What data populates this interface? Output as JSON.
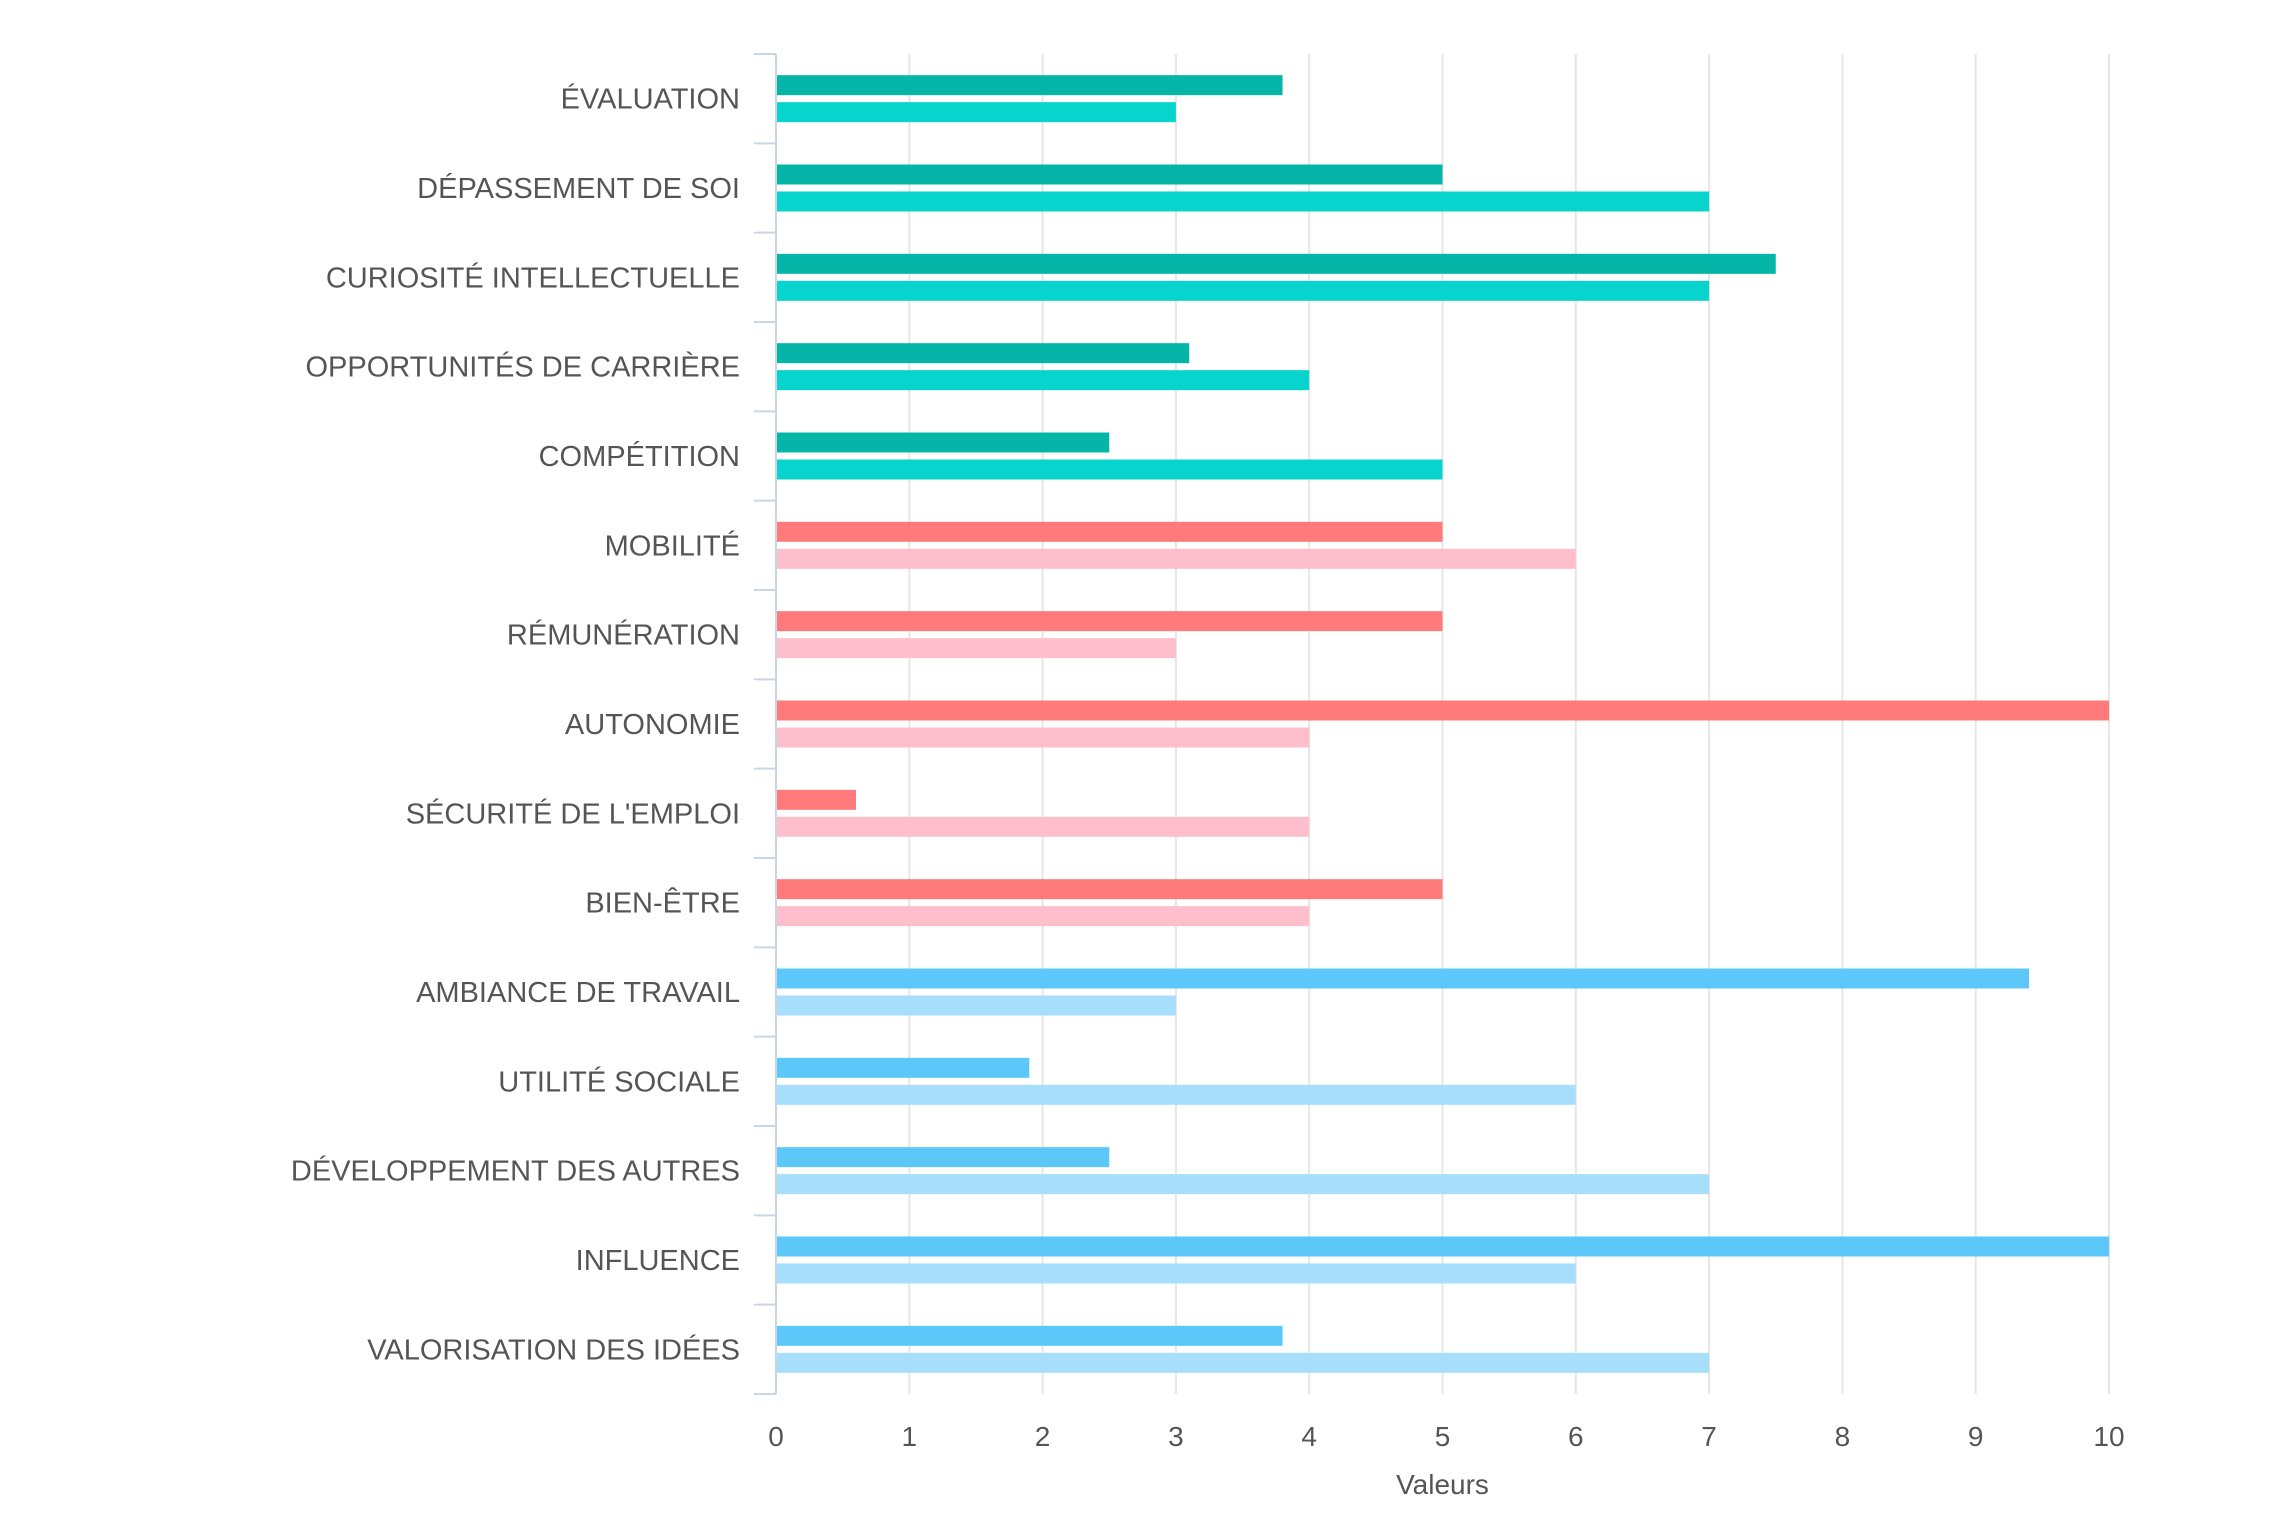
{
  "chart_data": {
    "type": "bar",
    "orientation": "horizontal",
    "xlabel": "Valeurs",
    "xlim": [
      0,
      10
    ],
    "x_ticks": [
      "0",
      "1",
      "2",
      "3",
      "4",
      "5",
      "6",
      "7",
      "8",
      "9",
      "10"
    ],
    "grid": true,
    "legend": "none",
    "categories": [
      "ÉVALUATION",
      "DÉPASSEMENT DE SOI",
      "CURIOSITÉ INTELLECTUELLE",
      "OPPORTUNITÉS DE CARRIÈRE",
      "COMPÉTITION",
      "MOBILITÉ",
      "RÉMUNÉRATION",
      "AUTONOMIE",
      "SÉCURITÉ DE L'EMPLOI",
      "BIEN-ÊTRE",
      "AMBIANCE DE TRAVAIL",
      "UTILITÉ SOCIALE",
      "DÉVELOPPEMENT DES AUTRES",
      "INFLUENCE",
      "VALORISATION DES IDÉES"
    ],
    "series": [
      {
        "values": [
          3.8,
          5,
          7.5,
          3.1,
          2.5,
          5,
          5,
          10,
          0.6,
          5,
          9.4,
          1.9,
          2.5,
          10,
          3.8
        ]
      },
      {
        "values": [
          3,
          7,
          7,
          4,
          5,
          6,
          3,
          4,
          4,
          4,
          3,
          6,
          7,
          6,
          7
        ]
      }
    ],
    "group_colors": [
      {
        "categories": [
          0,
          1,
          2,
          3,
          4
        ],
        "series_colors": [
          "#05b5a8",
          "#07d4cc"
        ]
      },
      {
        "categories": [
          5,
          6,
          7,
          8,
          9
        ],
        "series_colors": [
          "#ff7b7b",
          "#ffbecb"
        ]
      },
      {
        "categories": [
          10,
          11,
          12,
          13,
          14
        ],
        "series_colors": [
          "#5cc8fa",
          "#a6defb"
        ]
      }
    ]
  }
}
